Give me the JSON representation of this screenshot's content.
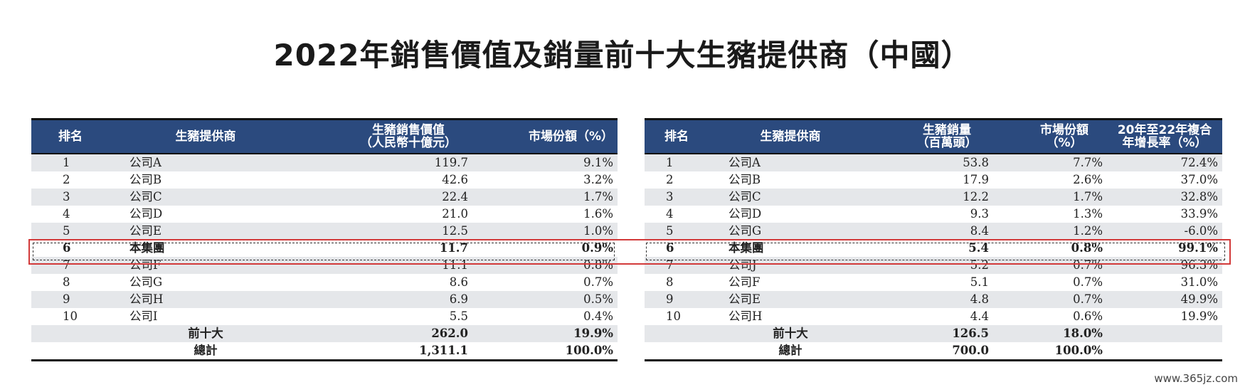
{
  "title": "2022年銷售價值及銷量前十大生豬提供商（中國）",
  "table1": {
    "headers": {
      "rank": "排名",
      "supplier": "生豬提供商",
      "value_line1": "生豬銷售價值",
      "value_line2": "（人民幣十億元）",
      "share": "市場份額（%）"
    },
    "rows": [
      {
        "rank": "1",
        "name": "公司A",
        "value": "119.7",
        "share": "9.1%"
      },
      {
        "rank": "2",
        "name": "公司B",
        "value": "42.6",
        "share": "3.2%"
      },
      {
        "rank": "3",
        "name": "公司C",
        "value": "22.4",
        "share": "1.7%"
      },
      {
        "rank": "4",
        "name": "公司D",
        "value": "21.0",
        "share": "1.6%"
      },
      {
        "rank": "5",
        "name": "公司E",
        "value": "12.5",
        "share": "1.0%"
      },
      {
        "rank": "6",
        "name": "本集團",
        "value": "11.7",
        "share": "0.9%"
      },
      {
        "rank": "7",
        "name": "公司F",
        "value": "11.1",
        "share": "0.8%"
      },
      {
        "rank": "8",
        "name": "公司G",
        "value": "8.6",
        "share": "0.7%"
      },
      {
        "rank": "9",
        "name": "公司H",
        "value": "6.9",
        "share": "0.5%"
      },
      {
        "rank": "10",
        "name": "公司I",
        "value": "5.5",
        "share": "0.4%"
      }
    ],
    "top10": {
      "label": "前十大",
      "value": "262.0",
      "share": "19.9%"
    },
    "total": {
      "label": "總計",
      "value": "1,311.1",
      "share": "100.0%"
    }
  },
  "table2": {
    "headers": {
      "rank": "排名",
      "supplier": "生豬提供商",
      "volume_line1": "生豬銷量",
      "volume_line2": "（百萬頭）",
      "share_line1": "市場份額",
      "share_line2": "（%）",
      "cagr_line1": "20年至22年複合",
      "cagr_line2": "年增長率（%）"
    },
    "rows": [
      {
        "rank": "1",
        "name": "公司A",
        "volume": "53.8",
        "share": "7.7%",
        "cagr": "72.4%"
      },
      {
        "rank": "2",
        "name": "公司B",
        "volume": "17.9",
        "share": "2.6%",
        "cagr": "37.0%"
      },
      {
        "rank": "3",
        "name": "公司C",
        "volume": "12.2",
        "share": "1.7%",
        "cagr": "32.8%"
      },
      {
        "rank": "4",
        "name": "公司D",
        "volume": "9.3",
        "share": "1.3%",
        "cagr": "33.9%"
      },
      {
        "rank": "5",
        "name": "公司G",
        "volume": "8.4",
        "share": "1.2%",
        "cagr": "-6.0%"
      },
      {
        "rank": "6",
        "name": "本集團",
        "volume": "5.4",
        "share": "0.8%",
        "cagr": "99.1%"
      },
      {
        "rank": "7",
        "name": "公司J",
        "volume": "5.2",
        "share": "0.7%",
        "cagr": "96.3%"
      },
      {
        "rank": "8",
        "name": "公司F",
        "volume": "5.1",
        "share": "0.7%",
        "cagr": "31.0%"
      },
      {
        "rank": "9",
        "name": "公司E",
        "volume": "4.8",
        "share": "0.7%",
        "cagr": "49.9%"
      },
      {
        "rank": "10",
        "name": "公司H",
        "volume": "4.4",
        "share": "0.6%",
        "cagr": "19.9%"
      }
    ],
    "top10": {
      "label": "前十大",
      "volume": "126.5",
      "share": "18.0%"
    },
    "total": {
      "label": "總計",
      "volume": "700.0",
      "share": "100.0%"
    }
  },
  "watermark": "www.365jz.com",
  "colors": {
    "header_bg": "#2b4a7e",
    "stripe": "#e5e7ea",
    "highlight_border": "#d23a3a"
  }
}
